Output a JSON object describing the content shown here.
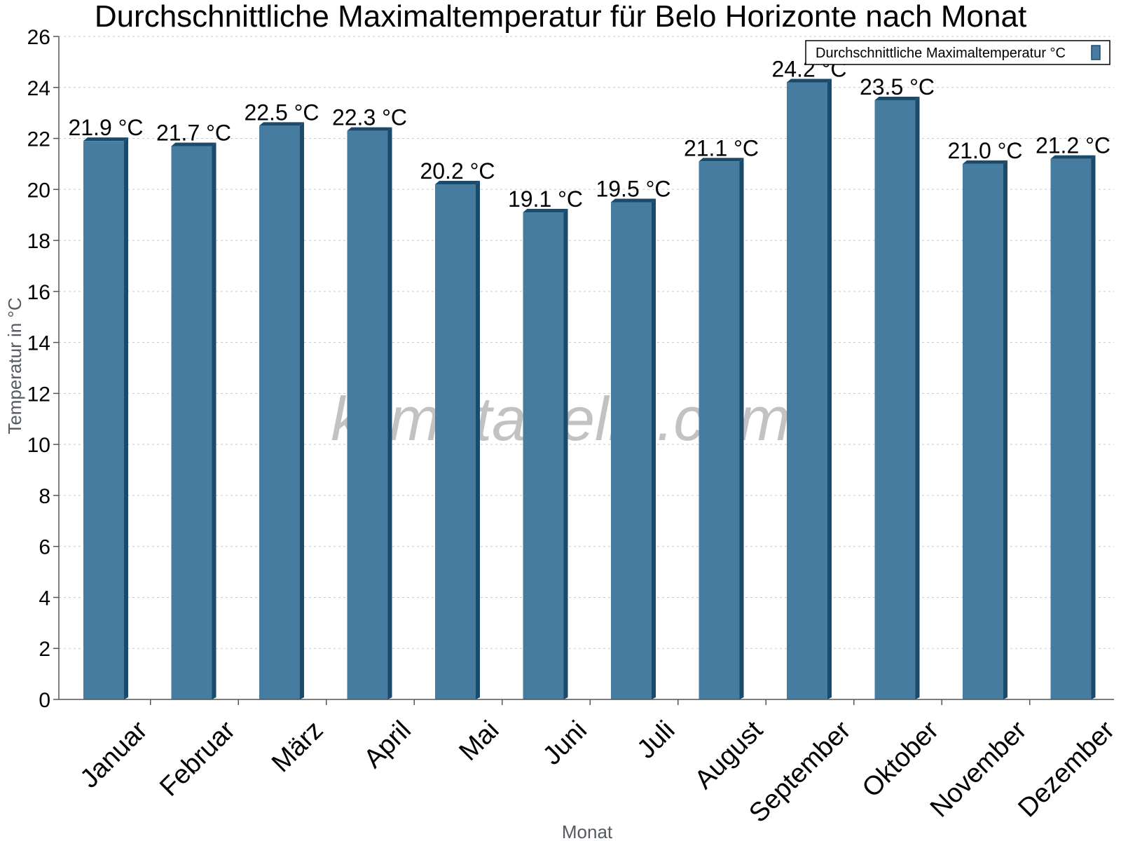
{
  "chart_data": {
    "type": "bar",
    "title": "Durchschnittliche Maximaltemperatur für Belo Horizonte nach Monat",
    "xlabel": "Monat",
    "ylabel": "Temperatur in °C",
    "categories": [
      "Januar",
      "Februar",
      "März",
      "April",
      "Mai",
      "Juni",
      "Juli",
      "August",
      "September",
      "Oktober",
      "November",
      "Dezember"
    ],
    "series": [
      {
        "name": "Durchschnittliche Maximaltemperatur °C",
        "values": [
          21.9,
          21.7,
          22.5,
          22.3,
          20.2,
          19.1,
          19.5,
          21.1,
          24.2,
          23.5,
          21.0,
          21.2
        ],
        "color": "#467c9f",
        "labels": [
          "21.9 °C",
          "21.7 °C",
          "22.5 °C",
          "22.3 °C",
          "20.2 °C",
          "19.1 °C",
          "19.5 °C",
          "21.1 °C",
          "24.2 °C",
          "23.5 °C",
          "21.0 °C",
          "21.2 °C"
        ]
      }
    ],
    "ylim": [
      0,
      26
    ],
    "yticks": [
      "0",
      "2",
      "4",
      "6",
      "8",
      "10",
      "12",
      "14",
      "16",
      "18",
      "20",
      "22",
      "24",
      "26"
    ],
    "grid": true,
    "legend_position": "top-right",
    "edge_color": "#1c4a6b"
  },
  "watermark": "klimatabelle.com"
}
